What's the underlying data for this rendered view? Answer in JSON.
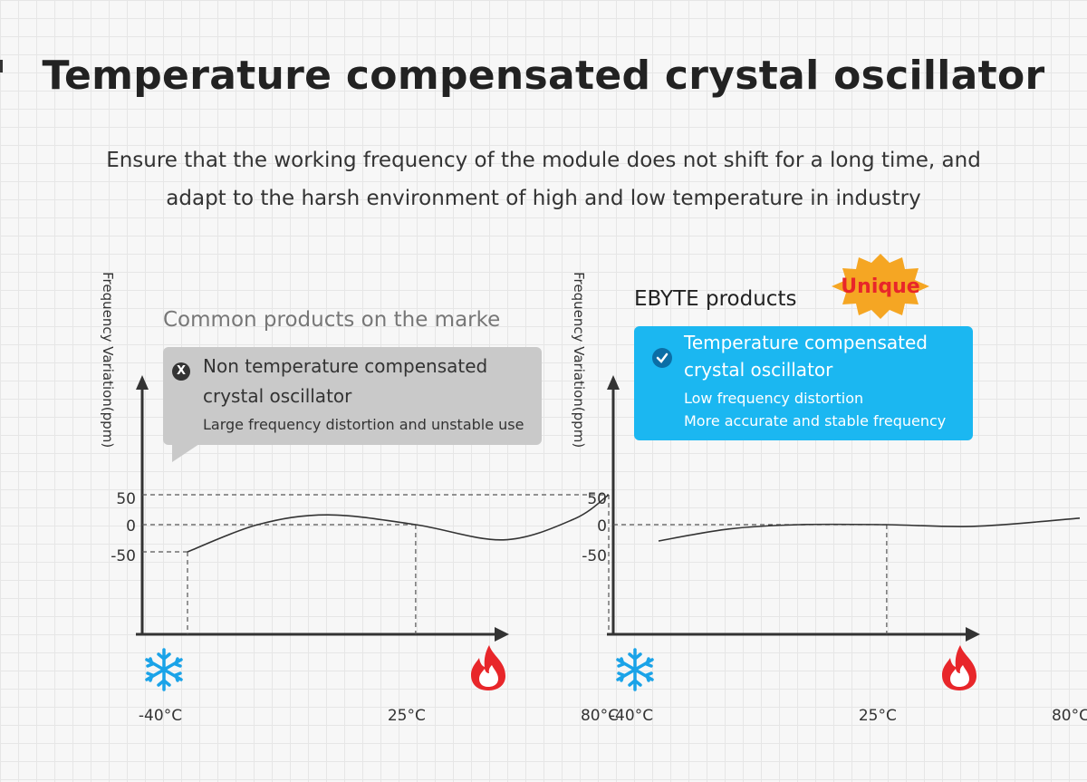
{
  "title": "Temperature compensated crystal oscillator",
  "subtitle": [
    "Ensure that the working frequency of the module does not shift for a long time, and",
    "adapt to the harsh environment of high and low temperature in industry"
  ],
  "colors": {
    "callout_gray": "#c9c9c9",
    "callout_blue": "#1bb7f1",
    "snow": "#1aa3e8",
    "flame": "#e8262a",
    "unique": "#f5a623"
  },
  "chart_data": [
    {
      "type": "line",
      "heading": "Common products on the marke",
      "ylabel": "Frequency Variation(ppm)",
      "y_ticks": [
        "50",
        "0",
        "-50"
      ],
      "x_ticks": [
        "-40°C",
        "25°C",
        "80°C"
      ],
      "callout": {
        "badge": "X",
        "line1": "Non temperature compensated",
        "line2": "crystal oscillator",
        "line3": "Large frequency distortion and unstable use"
      },
      "series": [
        {
          "x": [
            -40,
            -20,
            0,
            25,
            50,
            70,
            80
          ],
          "y": [
            -50,
            0,
            18,
            0,
            -28,
            10,
            55
          ]
        }
      ],
      "icons": {
        "cold": "snowflake-icon",
        "hot": "flame-icon"
      }
    },
    {
      "type": "line",
      "heading": "EBYTE products",
      "badge_text": "Unique",
      "ylabel": "Frequency Variation(ppm)",
      "y_ticks": [
        "50",
        "0",
        "-50"
      ],
      "x_ticks": [
        "-40°C",
        "25°C",
        "80°C"
      ],
      "callout": {
        "line1": "Temperature compensated",
        "line2": "crystal oscillator",
        "line3": "Low frequency distortion",
        "line4": "More accurate and stable frequency"
      },
      "series": [
        {
          "x": [
            -40,
            -20,
            0,
            25,
            50,
            80
          ],
          "y": [
            -30,
            -8,
            0,
            0,
            -3,
            12
          ]
        }
      ],
      "icons": {
        "cold": "snowflake-icon",
        "hot": "flame-icon"
      }
    }
  ]
}
